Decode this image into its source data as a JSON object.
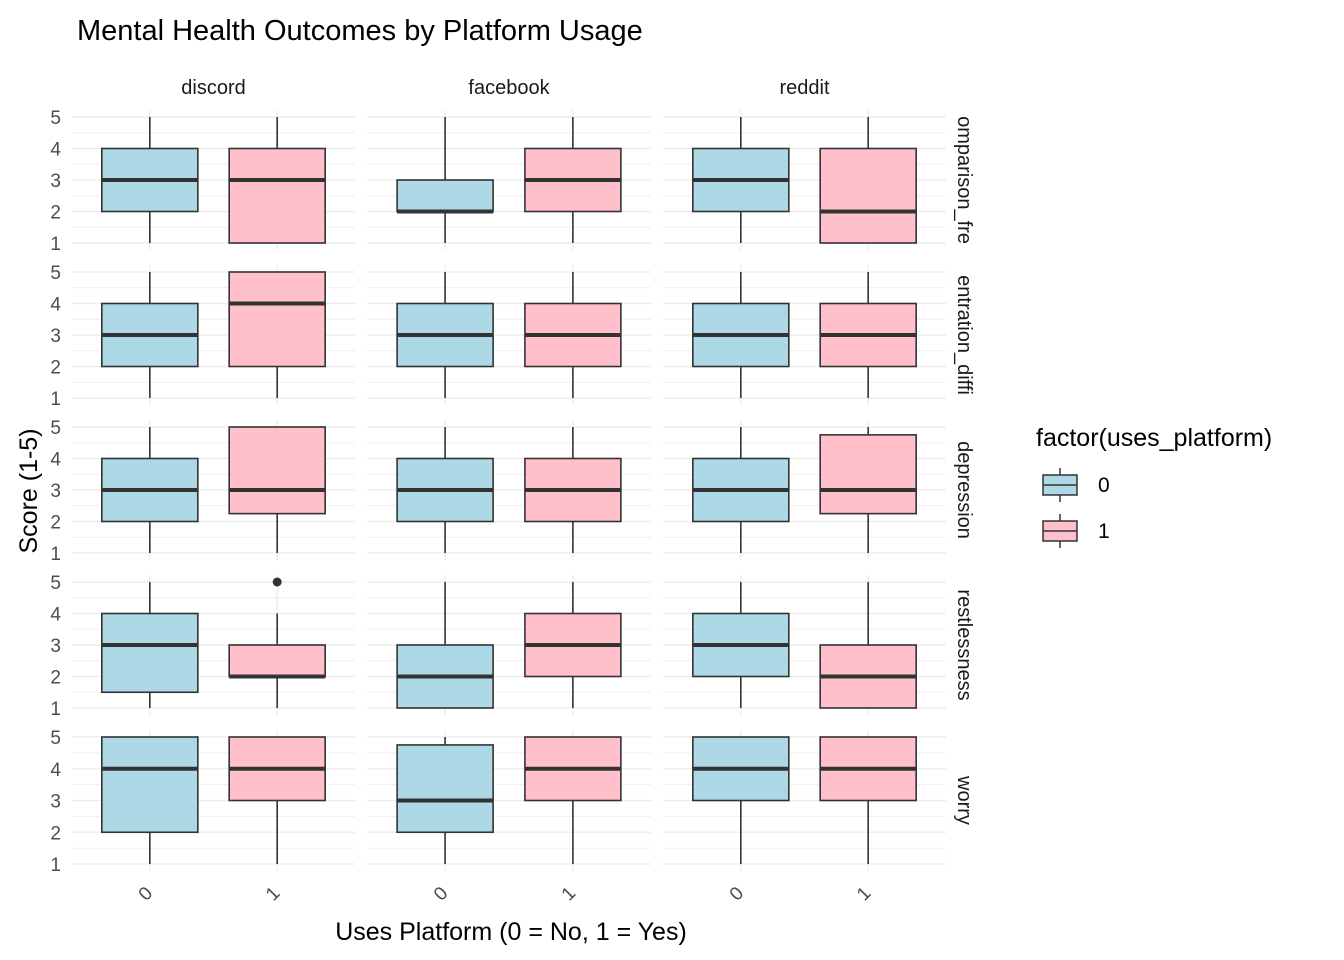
{
  "chart_data": {
    "type": "boxplot",
    "title": "Mental Health Outcomes by Platform Usage",
    "xlabel": "Uses Platform (0 = No, 1 = Yes)",
    "ylabel": "Score (1-5)",
    "ylim": [
      1,
      5
    ],
    "y_ticks": [
      "1",
      "2",
      "3",
      "4",
      "5"
    ],
    "x_categories": [
      "0",
      "1"
    ],
    "facet_columns": [
      "discord",
      "facebook",
      "reddit"
    ],
    "facet_rows": [
      {
        "label": "comparison_fre",
        "display": "omparison_fre"
      },
      {
        "label": "concentration_diffi",
        "display": "entration_diffi"
      },
      {
        "label": "depression",
        "display": "depression"
      },
      {
        "label": "restlessness",
        "display": "restlessness"
      },
      {
        "label": "worry",
        "display": "worry"
      }
    ],
    "legend": {
      "title": "factor(uses_platform)",
      "position": "right",
      "items": [
        {
          "label": "0",
          "color": "#ADD8E6"
        },
        {
          "label": "1",
          "color": "#FFC0CB"
        }
      ]
    },
    "grid": true,
    "colors": {
      "0": "#ADD8E6",
      "1": "#FFC0CB",
      "line": "#333333",
      "grid": "#EBEBEB"
    },
    "panels": [
      [
        [
          {
            "x": "0",
            "min": 1,
            "q1": 2,
            "median": 3,
            "q3": 4,
            "max": 5
          },
          {
            "x": "1",
            "min": 1,
            "q1": 1,
            "median": 3,
            "q3": 4,
            "max": 5
          }
        ],
        [
          {
            "x": "0",
            "min": 1,
            "q1": 2,
            "median": 2,
            "q3": 3,
            "max": 5
          },
          {
            "x": "1",
            "min": 1,
            "q1": 2,
            "median": 3,
            "q3": 4,
            "max": 5
          }
        ],
        [
          {
            "x": "0",
            "min": 1,
            "q1": 2,
            "median": 3,
            "q3": 4,
            "max": 5
          },
          {
            "x": "1",
            "min": 1,
            "q1": 1,
            "median": 2,
            "q3": 4,
            "max": 5
          }
        ]
      ],
      [
        [
          {
            "x": "0",
            "min": 1,
            "q1": 2,
            "median": 3,
            "q3": 4,
            "max": 5
          },
          {
            "x": "1",
            "min": 1,
            "q1": 2,
            "median": 4,
            "q3": 5,
            "max": 5
          }
        ],
        [
          {
            "x": "0",
            "min": 1,
            "q1": 2,
            "median": 3,
            "q3": 4,
            "max": 5
          },
          {
            "x": "1",
            "min": 1,
            "q1": 2,
            "median": 3,
            "q3": 4,
            "max": 5
          }
        ],
        [
          {
            "x": "0",
            "min": 1,
            "q1": 2,
            "median": 3,
            "q3": 4,
            "max": 5
          },
          {
            "x": "1",
            "min": 1,
            "q1": 2,
            "median": 3,
            "q3": 4,
            "max": 5
          }
        ]
      ],
      [
        [
          {
            "x": "0",
            "min": 1,
            "q1": 2,
            "median": 3,
            "q3": 4,
            "max": 5
          },
          {
            "x": "1",
            "min": 1,
            "q1": 2.25,
            "median": 3,
            "q3": 5,
            "max": 5
          }
        ],
        [
          {
            "x": "0",
            "min": 1,
            "q1": 2,
            "median": 3,
            "q3": 4,
            "max": 5
          },
          {
            "x": "1",
            "min": 1,
            "q1": 2,
            "median": 3,
            "q3": 4,
            "max": 5
          }
        ],
        [
          {
            "x": "0",
            "min": 1,
            "q1": 2,
            "median": 3,
            "q3": 4,
            "max": 5
          },
          {
            "x": "1",
            "min": 1,
            "q1": 2.25,
            "median": 3,
            "q3": 4.75,
            "max": 5
          }
        ]
      ],
      [
        [
          {
            "x": "0",
            "min": 1,
            "q1": 1.5,
            "median": 3,
            "q3": 4,
            "max": 5
          },
          {
            "x": "1",
            "min": 1,
            "q1": 2,
            "median": 2,
            "q3": 3,
            "max": 4,
            "outliers": [
              5
            ]
          }
        ],
        [
          {
            "x": "0",
            "min": 1,
            "q1": 1,
            "median": 2,
            "q3": 3,
            "max": 5
          },
          {
            "x": "1",
            "min": 1,
            "q1": 2,
            "median": 3,
            "q3": 4,
            "max": 5
          }
        ],
        [
          {
            "x": "0",
            "min": 1,
            "q1": 2,
            "median": 3,
            "q3": 4,
            "max": 5
          },
          {
            "x": "1",
            "min": 1,
            "q1": 1,
            "median": 2,
            "q3": 3,
            "max": 5
          }
        ]
      ],
      [
        [
          {
            "x": "0",
            "min": 1,
            "q1": 2,
            "median": 4,
            "q3": 5,
            "max": 5
          },
          {
            "x": "1",
            "min": 1,
            "q1": 3,
            "median": 4,
            "q3": 5,
            "max": 5
          }
        ],
        [
          {
            "x": "0",
            "min": 1,
            "q1": 2,
            "median": 3,
            "q3": 4.75,
            "max": 5
          },
          {
            "x": "1",
            "min": 1,
            "q1": 3,
            "median": 4,
            "q3": 5,
            "max": 5
          }
        ],
        [
          {
            "x": "0",
            "min": 1,
            "q1": 3,
            "median": 4,
            "q3": 5,
            "max": 5
          },
          {
            "x": "1",
            "min": 1,
            "q1": 3,
            "median": 4,
            "q3": 5,
            "max": 5
          }
        ]
      ]
    ]
  }
}
